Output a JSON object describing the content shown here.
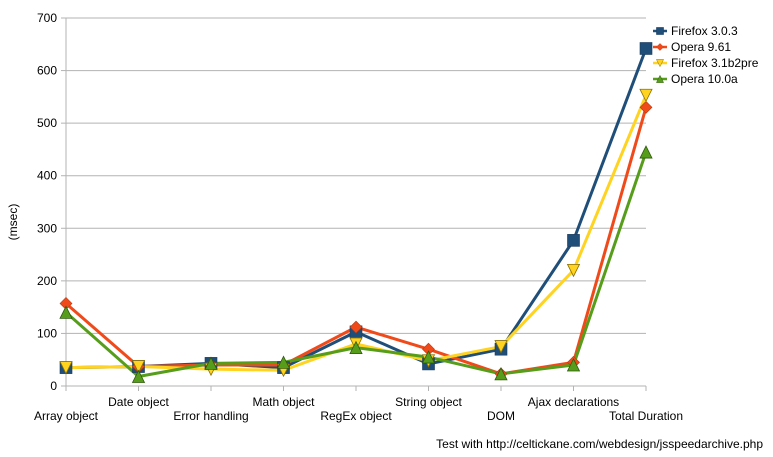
{
  "chart_data": {
    "type": "line",
    "title": "",
    "ylabel": "(msec)",
    "xlabel": "",
    "ylim": [
      0,
      700
    ],
    "yticks": [
      0,
      100,
      200,
      300,
      400,
      500,
      600,
      700
    ],
    "grid": true,
    "legend_position": "top-right",
    "categories": [
      "Array object",
      "Date object",
      "Error handling",
      "Math object",
      "RegEx object",
      "String object",
      "DOM",
      "Ajax declarations",
      "Total Duration"
    ],
    "series": [
      {
        "name": "Firefox 3.0.3",
        "color": "#1f4e79",
        "marker": "square",
        "values": [
          35,
          37,
          43,
          35,
          103,
          42,
          70,
          277,
          642
        ]
      },
      {
        "name": "Opera 9.61",
        "color": "#f04a1a",
        "marker": "diamond",
        "values": [
          157,
          37,
          40,
          40,
          112,
          70,
          23,
          45,
          530
        ]
      },
      {
        "name": "Firefox 3.1b2pre",
        "color": "#ffd320",
        "marker": "triangle-down",
        "values": [
          35,
          37,
          32,
          30,
          80,
          48,
          75,
          220,
          553
        ]
      },
      {
        "name": "Opera 10.0a",
        "color": "#579d1c",
        "marker": "triangle-up",
        "values": [
          140,
          18,
          43,
          45,
          73,
          55,
          23,
          40,
          445
        ]
      }
    ],
    "footnote": "Test with http://celtickane.com/webdesign/jsspeedarchive.php"
  }
}
